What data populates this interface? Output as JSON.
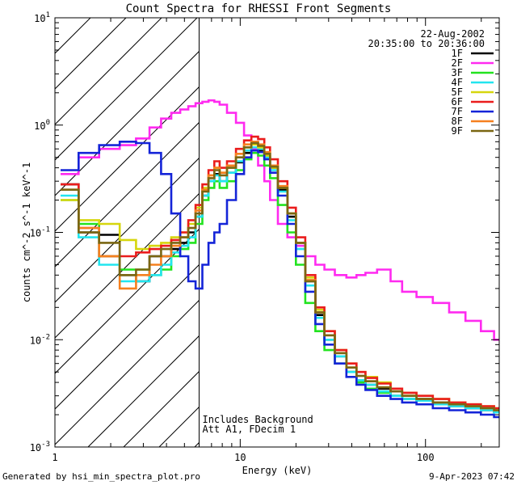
{
  "footer": {
    "generated_by": "Generated by hsi_min_spectra_plot.pro",
    "timestamp": "9-Apr-2023 07:42"
  },
  "colors": {
    "background": "#ffffff",
    "axis": "#000000",
    "1F": "#000000",
    "2F": "#ff2af0",
    "3F": "#22e31f",
    "4F": "#22e5ef",
    "5F": "#d6d60d",
    "6F": "#ea1c1c",
    "7F": "#1424d8",
    "8F": "#f5801f",
    "9F": "#7a6612"
  },
  "chart_data": {
    "type": "line",
    "title": "Count Spectra for RHESSI Front Segments",
    "xlabel": "Energy (keV)",
    "ylabel": "counts cm^-2 s^-1 keV^-1",
    "xscale": "log",
    "yscale": "log",
    "xlim": [
      1,
      250
    ],
    "ylim": [
      0.001,
      10
    ],
    "x_ticks": [
      "1",
      "10",
      "100"
    ],
    "y_ticks": [
      "10^-3",
      "10^-2",
      "10^-1",
      "10^0",
      "10^1"
    ],
    "date": "22-Aug-2002",
    "time_range": "20:35:00 to 20:36:00",
    "legend_position": "top-right",
    "annotations": [
      "Includes Background",
      "Att A1, FDecim 1"
    ],
    "hatched_region_keV": [
      1,
      6
    ],
    "cutoff_line_keV": 6,
    "x": [
      1.2,
      1.5,
      2.0,
      2.5,
      3.0,
      3.5,
      4.0,
      4.5,
      5.0,
      5.5,
      6.0,
      6.5,
      7.0,
      7.5,
      8.0,
      9.0,
      10.0,
      11.0,
      12.0,
      13.0,
      14.0,
      15.0,
      17.0,
      19.0,
      21.0,
      24.0,
      27.0,
      30.0,
      35.0,
      40.0,
      45.0,
      50.0,
      60.0,
      70.0,
      80.0,
      100.0,
      120.0,
      150.0,
      180.0,
      220.0,
      250.0
    ],
    "series": [
      {
        "name": "1F",
        "values": [
          0.28,
          0.1,
          0.095,
          0.04,
          0.035,
          0.06,
          0.06,
          0.07,
          0.08,
          0.1,
          0.14,
          0.22,
          0.3,
          0.35,
          0.3,
          0.36,
          0.45,
          0.55,
          0.6,
          0.58,
          0.5,
          0.4,
          0.25,
          0.14,
          0.08,
          0.035,
          0.017,
          0.01,
          0.007,
          0.005,
          0.004,
          0.0038,
          0.0035,
          0.003,
          0.0028,
          0.0028,
          0.0025,
          0.0024,
          0.0023,
          0.0022,
          0.0021
        ]
      },
      {
        "name": "2F",
        "values": [
          0.35,
          0.5,
          0.6,
          0.65,
          0.75,
          0.95,
          1.15,
          1.3,
          1.4,
          1.5,
          1.6,
          1.65,
          1.7,
          1.65,
          1.55,
          1.3,
          1.05,
          0.8,
          0.6,
          0.42,
          0.3,
          0.2,
          0.12,
          0.09,
          0.075,
          0.06,
          0.05,
          0.045,
          0.04,
          0.038,
          0.04,
          0.042,
          0.045,
          0.035,
          0.028,
          0.025,
          0.022,
          0.018,
          0.015,
          0.012,
          0.01
        ]
      },
      {
        "name": "3F",
        "values": [
          0.2,
          0.12,
          0.06,
          0.045,
          0.045,
          0.04,
          0.045,
          0.06,
          0.07,
          0.08,
          0.12,
          0.2,
          0.26,
          0.3,
          0.26,
          0.3,
          0.38,
          0.48,
          0.55,
          0.52,
          0.42,
          0.32,
          0.18,
          0.1,
          0.05,
          0.022,
          0.012,
          0.008,
          0.006,
          0.005,
          0.004,
          0.0035,
          0.0032,
          0.003,
          0.0028,
          0.0027,
          0.0026,
          0.0025,
          0.0024,
          0.0023,
          0.0022
        ]
      },
      {
        "name": "4F",
        "values": [
          0.22,
          0.09,
          0.05,
          0.035,
          0.035,
          0.04,
          0.05,
          0.065,
          0.075,
          0.09,
          0.14,
          0.22,
          0.3,
          0.34,
          0.3,
          0.36,
          0.46,
          0.58,
          0.62,
          0.6,
          0.5,
          0.38,
          0.24,
          0.13,
          0.07,
          0.032,
          0.016,
          0.01,
          0.007,
          0.005,
          0.0042,
          0.0038,
          0.0033,
          0.003,
          0.0028,
          0.0027,
          0.0025,
          0.0024,
          0.0023,
          0.0022,
          0.0021
        ]
      },
      {
        "name": "5F",
        "values": [
          0.2,
          0.13,
          0.12,
          0.085,
          0.07,
          0.075,
          0.08,
          0.09,
          0.1,
          0.12,
          0.17,
          0.26,
          0.34,
          0.4,
          0.36,
          0.4,
          0.5,
          0.62,
          0.66,
          0.62,
          0.52,
          0.4,
          0.26,
          0.15,
          0.08,
          0.038,
          0.019,
          0.012,
          0.008,
          0.006,
          0.005,
          0.0045,
          0.004,
          0.0035,
          0.0032,
          0.003,
          0.0028,
          0.0026,
          0.0025,
          0.0024,
          0.0023
        ]
      },
      {
        "name": "6F",
        "values": [
          0.28,
          0.11,
          0.06,
          0.06,
          0.065,
          0.07,
          0.075,
          0.085,
          0.1,
          0.13,
          0.18,
          0.28,
          0.38,
          0.46,
          0.4,
          0.46,
          0.6,
          0.72,
          0.78,
          0.74,
          0.62,
          0.48,
          0.3,
          0.17,
          0.09,
          0.04,
          0.02,
          0.012,
          0.008,
          0.006,
          0.005,
          0.0044,
          0.0039,
          0.0035,
          0.0032,
          0.003,
          0.0028,
          0.0026,
          0.0025,
          0.0024,
          0.0023
        ]
      },
      {
        "name": "7F",
        "values": [
          0.38,
          0.55,
          0.65,
          0.7,
          0.68,
          0.55,
          0.35,
          0.15,
          0.06,
          0.035,
          0.03,
          0.05,
          0.08,
          0.1,
          0.12,
          0.2,
          0.35,
          0.5,
          0.58,
          0.56,
          0.48,
          0.36,
          0.22,
          0.12,
          0.06,
          0.028,
          0.014,
          0.009,
          0.006,
          0.0045,
          0.0038,
          0.0034,
          0.003,
          0.0028,
          0.0026,
          0.0025,
          0.0023,
          0.0022,
          0.0021,
          0.002,
          0.0019
        ]
      },
      {
        "name": "8F",
        "values": [
          0.25,
          0.11,
          0.06,
          0.03,
          0.04,
          0.05,
          0.06,
          0.075,
          0.09,
          0.11,
          0.16,
          0.25,
          0.34,
          0.4,
          0.36,
          0.42,
          0.54,
          0.66,
          0.7,
          0.66,
          0.56,
          0.42,
          0.27,
          0.15,
          0.08,
          0.036,
          0.018,
          0.011,
          0.0075,
          0.0055,
          0.0046,
          0.0041,
          0.0036,
          0.0033,
          0.003,
          0.0028,
          0.0026,
          0.0025,
          0.0024,
          0.0023,
          0.0022
        ]
      },
      {
        "name": "9F",
        "values": [
          0.25,
          0.1,
          0.08,
          0.04,
          0.045,
          0.06,
          0.07,
          0.08,
          0.09,
          0.11,
          0.15,
          0.24,
          0.32,
          0.38,
          0.34,
          0.4,
          0.5,
          0.62,
          0.68,
          0.64,
          0.54,
          0.41,
          0.26,
          0.15,
          0.08,
          0.035,
          0.018,
          0.011,
          0.0075,
          0.0055,
          0.0046,
          0.0041,
          0.0036,
          0.0033,
          0.003,
          0.0028,
          0.0026,
          0.0025,
          0.0024,
          0.0023,
          0.0022
        ]
      }
    ]
  }
}
